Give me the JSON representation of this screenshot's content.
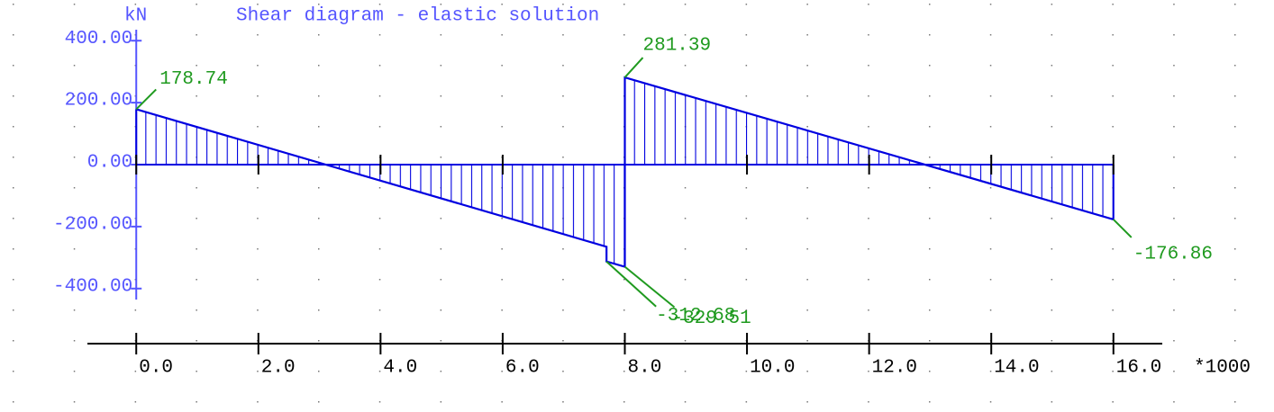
{
  "chart_data": {
    "type": "line",
    "title": "Shear diagram - elastic solution",
    "y_label": "kN",
    "x_label": "*1000",
    "x": [
      0,
      7.7,
      7.7,
      8.0,
      8.0,
      16.0
    ],
    "series": [
      {
        "color": "#0000e0",
        "values": [
          178.74,
          -265,
          -312.68,
          -329.51,
          281.39,
          -176.86
        ],
        "value_labels": [
          "178.74",
          null,
          "-312.68",
          "-329.51",
          "281.39",
          "-176.86"
        ]
      }
    ],
    "label_color": "#1f9a1f",
    "axis_color": "#5555ff",
    "xlim": [
      -0.8,
      16.8
    ],
    "ylim": [
      -450,
      450
    ],
    "xticks": [
      {
        "value": 0,
        "label": "0.0"
      },
      {
        "value": 2,
        "label": "2.0"
      },
      {
        "value": 4,
        "label": "4.0"
      },
      {
        "value": 6,
        "label": "6.0"
      },
      {
        "value": 8,
        "label": "8.0"
      },
      {
        "value": 10,
        "label": "10.0"
      },
      {
        "value": 12,
        "label": "12.0"
      },
      {
        "value": 14,
        "label": "14.0"
      },
      {
        "value": 16,
        "label": "16.0"
      }
    ],
    "yticks": [
      {
        "value": 400,
        "label": "400.00"
      },
      {
        "value": 200,
        "label": "200.00"
      },
      {
        "value": 0,
        "label": "0.00"
      },
      {
        "value": -200,
        "label": "-200.00"
      },
      {
        "value": -400,
        "label": "-400.00"
      }
    ]
  }
}
